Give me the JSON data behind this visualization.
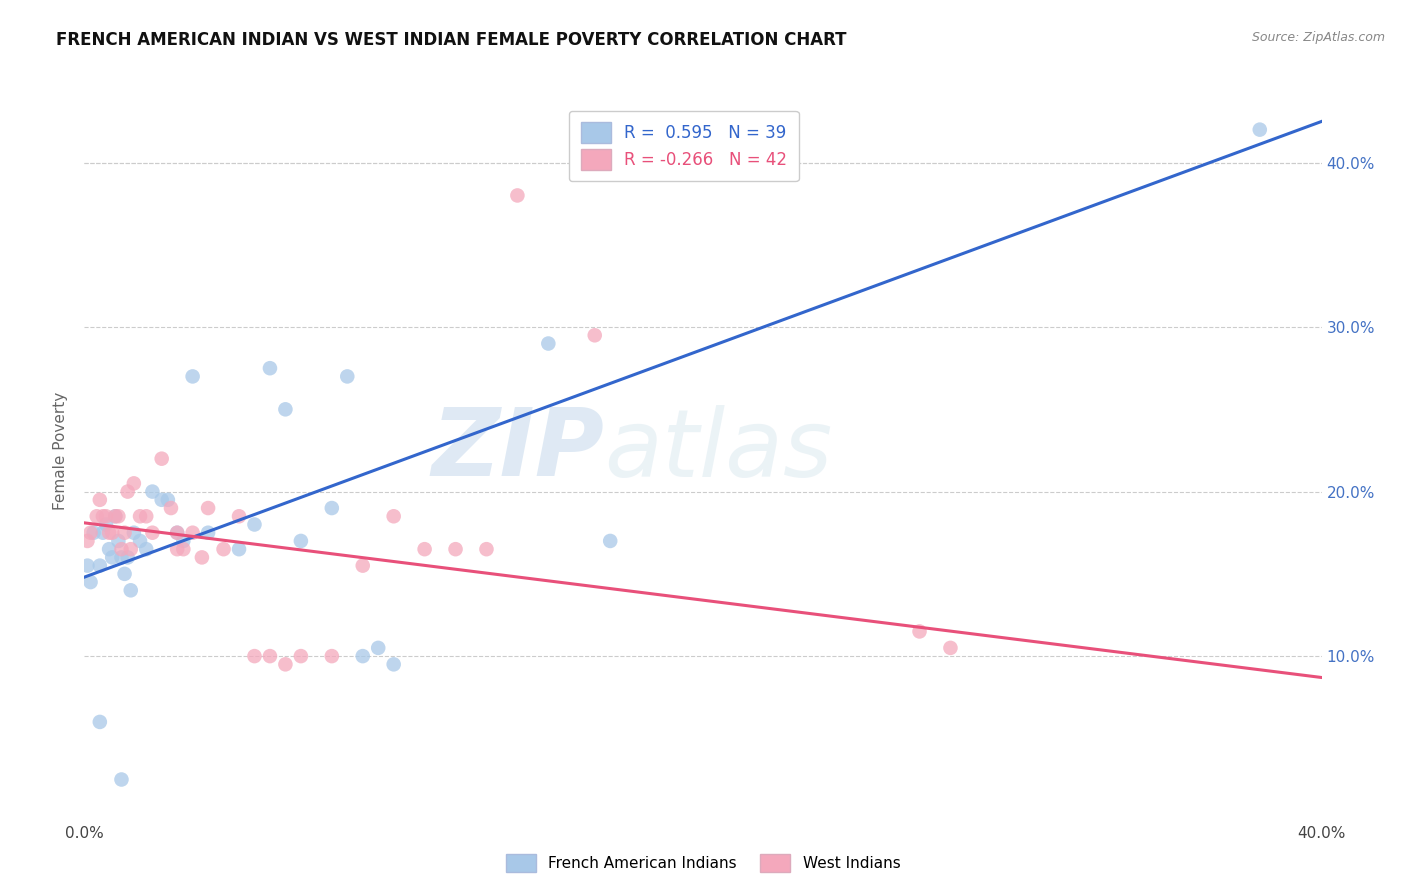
{
  "title": "FRENCH AMERICAN INDIAN VS WEST INDIAN FEMALE POVERTY CORRELATION CHART",
  "source": "Source: ZipAtlas.com",
  "ylabel": "Female Poverty",
  "xlim": [
    0.0,
    0.4
  ],
  "ylim": [
    0.0,
    0.45
  ],
  "xticks": [
    0.0,
    0.05,
    0.1,
    0.15,
    0.2,
    0.25,
    0.3,
    0.35,
    0.4
  ],
  "yticks": [
    0.0,
    0.1,
    0.2,
    0.3,
    0.4
  ],
  "blue_R": 0.595,
  "blue_N": 39,
  "pink_R": -0.266,
  "pink_N": 42,
  "blue_color": "#a8c8e8",
  "pink_color": "#f4a8bc",
  "blue_line_color": "#3366cc",
  "pink_line_color": "#e8507a",
  "legend_label_blue": "French American Indians",
  "legend_label_pink": "West Indians",
  "watermark_zip": "ZIP",
  "watermark_atlas": "atlas",
  "blue_line_x0": 0.0,
  "blue_line_y0": 0.148,
  "blue_line_x1": 0.4,
  "blue_line_y1": 0.425,
  "pink_line_x0": 0.0,
  "pink_line_y0": 0.181,
  "pink_line_x1": 0.4,
  "pink_line_y1": 0.087,
  "blue_x": [
    0.001,
    0.003,
    0.005,
    0.006,
    0.007,
    0.008,
    0.009,
    0.01,
    0.011,
    0.012,
    0.013,
    0.014,
    0.015,
    0.016,
    0.018,
    0.02,
    0.022,
    0.025,
    0.027,
    0.03,
    0.032,
    0.035,
    0.04,
    0.05,
    0.055,
    0.06,
    0.065,
    0.07,
    0.08,
    0.085,
    0.09,
    0.095,
    0.1,
    0.15,
    0.17,
    0.005,
    0.012,
    0.38,
    0.002
  ],
  "blue_y": [
    0.155,
    0.175,
    0.155,
    0.175,
    0.18,
    0.165,
    0.16,
    0.185,
    0.17,
    0.16,
    0.15,
    0.16,
    0.14,
    0.175,
    0.17,
    0.165,
    0.2,
    0.195,
    0.195,
    0.175,
    0.17,
    0.27,
    0.175,
    0.165,
    0.18,
    0.275,
    0.25,
    0.17,
    0.19,
    0.27,
    0.1,
    0.105,
    0.095,
    0.29,
    0.17,
    0.06,
    0.025,
    0.42,
    0.145
  ],
  "pink_x": [
    0.001,
    0.002,
    0.004,
    0.005,
    0.006,
    0.007,
    0.008,
    0.009,
    0.01,
    0.011,
    0.012,
    0.013,
    0.014,
    0.015,
    0.016,
    0.018,
    0.02,
    0.022,
    0.025,
    0.028,
    0.03,
    0.032,
    0.035,
    0.038,
    0.04,
    0.05,
    0.055,
    0.06,
    0.065,
    0.07,
    0.08,
    0.09,
    0.1,
    0.11,
    0.12,
    0.13,
    0.14,
    0.165,
    0.27,
    0.28,
    0.03,
    0.045
  ],
  "pink_y": [
    0.17,
    0.175,
    0.185,
    0.195,
    0.185,
    0.185,
    0.175,
    0.175,
    0.185,
    0.185,
    0.165,
    0.175,
    0.2,
    0.165,
    0.205,
    0.185,
    0.185,
    0.175,
    0.22,
    0.19,
    0.175,
    0.165,
    0.175,
    0.16,
    0.19,
    0.185,
    0.1,
    0.1,
    0.095,
    0.1,
    0.1,
    0.155,
    0.185,
    0.165,
    0.165,
    0.165,
    0.38,
    0.295,
    0.115,
    0.105,
    0.165,
    0.165
  ]
}
